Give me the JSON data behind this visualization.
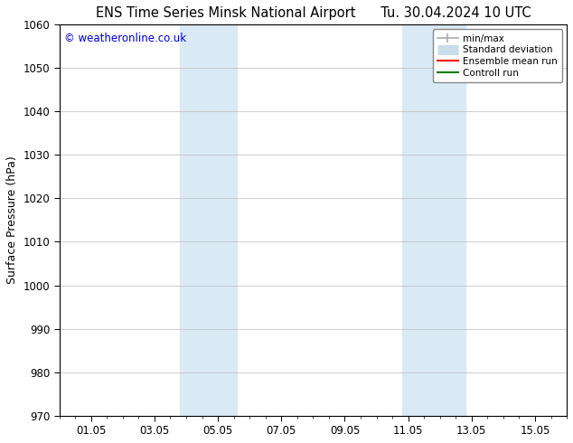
{
  "title_left": "ENS Time Series Minsk National Airport",
  "title_right": "Tu. 30.04.2024 10 UTC",
  "ylabel": "Surface Pressure (hPa)",
  "ylim": [
    970,
    1060
  ],
  "yticks": [
    970,
    980,
    990,
    1000,
    1010,
    1020,
    1030,
    1040,
    1050,
    1060
  ],
  "xtick_labels": [
    "01.05",
    "03.05",
    "05.05",
    "07.05",
    "09.05",
    "11.05",
    "13.05",
    "15.05"
  ],
  "xtick_positions": [
    1,
    3,
    5,
    7,
    9,
    11,
    13,
    15
  ],
  "xlim": [
    0,
    16
  ],
  "shaded_bands": [
    {
      "x_start": 3.8,
      "x_end": 5.6,
      "color": "#daeaf5"
    },
    {
      "x_start": 10.8,
      "x_end": 12.8,
      "color": "#daeaf5"
    }
  ],
  "watermark_text": "© weatheronline.co.uk",
  "watermark_color": "#0000cc",
  "legend_entries": [
    {
      "label": "min/max",
      "color": "#aaaaaa",
      "lw": 1.2,
      "style": "line_with_bar"
    },
    {
      "label": "Standard deviation",
      "color": "#c8dcea",
      "lw": 8,
      "style": "thick"
    },
    {
      "label": "Ensemble mean run",
      "color": "#ff0000",
      "lw": 1.5,
      "style": "line"
    },
    {
      "label": "Controll run",
      "color": "#008000",
      "lw": 1.5,
      "style": "line"
    }
  ],
  "background_color": "#ffffff",
  "grid_color": "#bbbbbb",
  "tick_label_size": 8.5,
  "axis_label_size": 9,
  "title_size": 10.5,
  "minor_tick_count": 4
}
